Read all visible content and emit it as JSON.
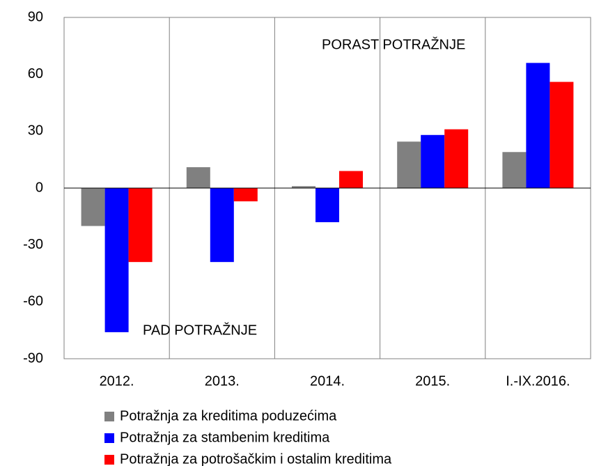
{
  "chart_data": {
    "type": "bar",
    "categories": [
      "2012.",
      "2013.",
      "2014.",
      "2015.",
      "I.-IX.2016."
    ],
    "series": [
      {
        "name": "Potražnja za kreditima poduzećima",
        "color": "#808080",
        "values": [
          -20,
          11,
          1,
          24.5,
          19
        ]
      },
      {
        "name": "Potražnja za stambenim kreditima",
        "color": "#0000ff",
        "values": [
          -76,
          -39,
          -18,
          28,
          66
        ]
      },
      {
        "name": "Potražnja za potrošačkim i ostalim kreditima",
        "color": "#ff0000",
        "values": [
          -39,
          -7,
          9,
          31,
          56
        ]
      }
    ],
    "annotations": [
      "PORAST POTRAŽNJE",
      "PAD POTRAŽNJE"
    ],
    "ylim": [
      -90,
      90
    ],
    "yticks": [
      -90,
      -60,
      -30,
      0,
      30,
      60,
      90
    ],
    "grid": false,
    "legend": "bottom"
  }
}
